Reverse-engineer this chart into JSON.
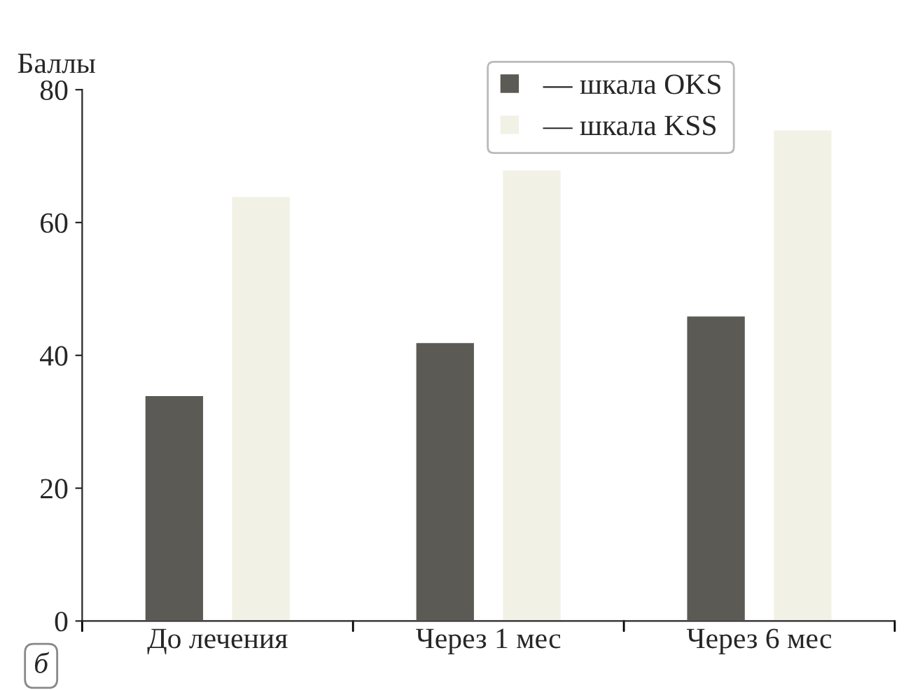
{
  "chart_data": {
    "type": "bar",
    "ylabel": "Баллы",
    "categories": [
      "До лечения",
      "Через 1 мес",
      "Через 6 мес"
    ],
    "series": [
      {
        "name": "— шкала OKS",
        "color": "#5b5a55",
        "values": [
          34,
          42,
          46
        ]
      },
      {
        "name": "— шкала KSS",
        "color": "#f2f1e6",
        "values": [
          64,
          68,
          74
        ]
      }
    ],
    "ylim": [
      0,
      80
    ],
    "yticks": [
      0,
      20,
      40,
      60,
      80
    ],
    "legend": "top right",
    "annotations": [
      "б"
    ]
  }
}
